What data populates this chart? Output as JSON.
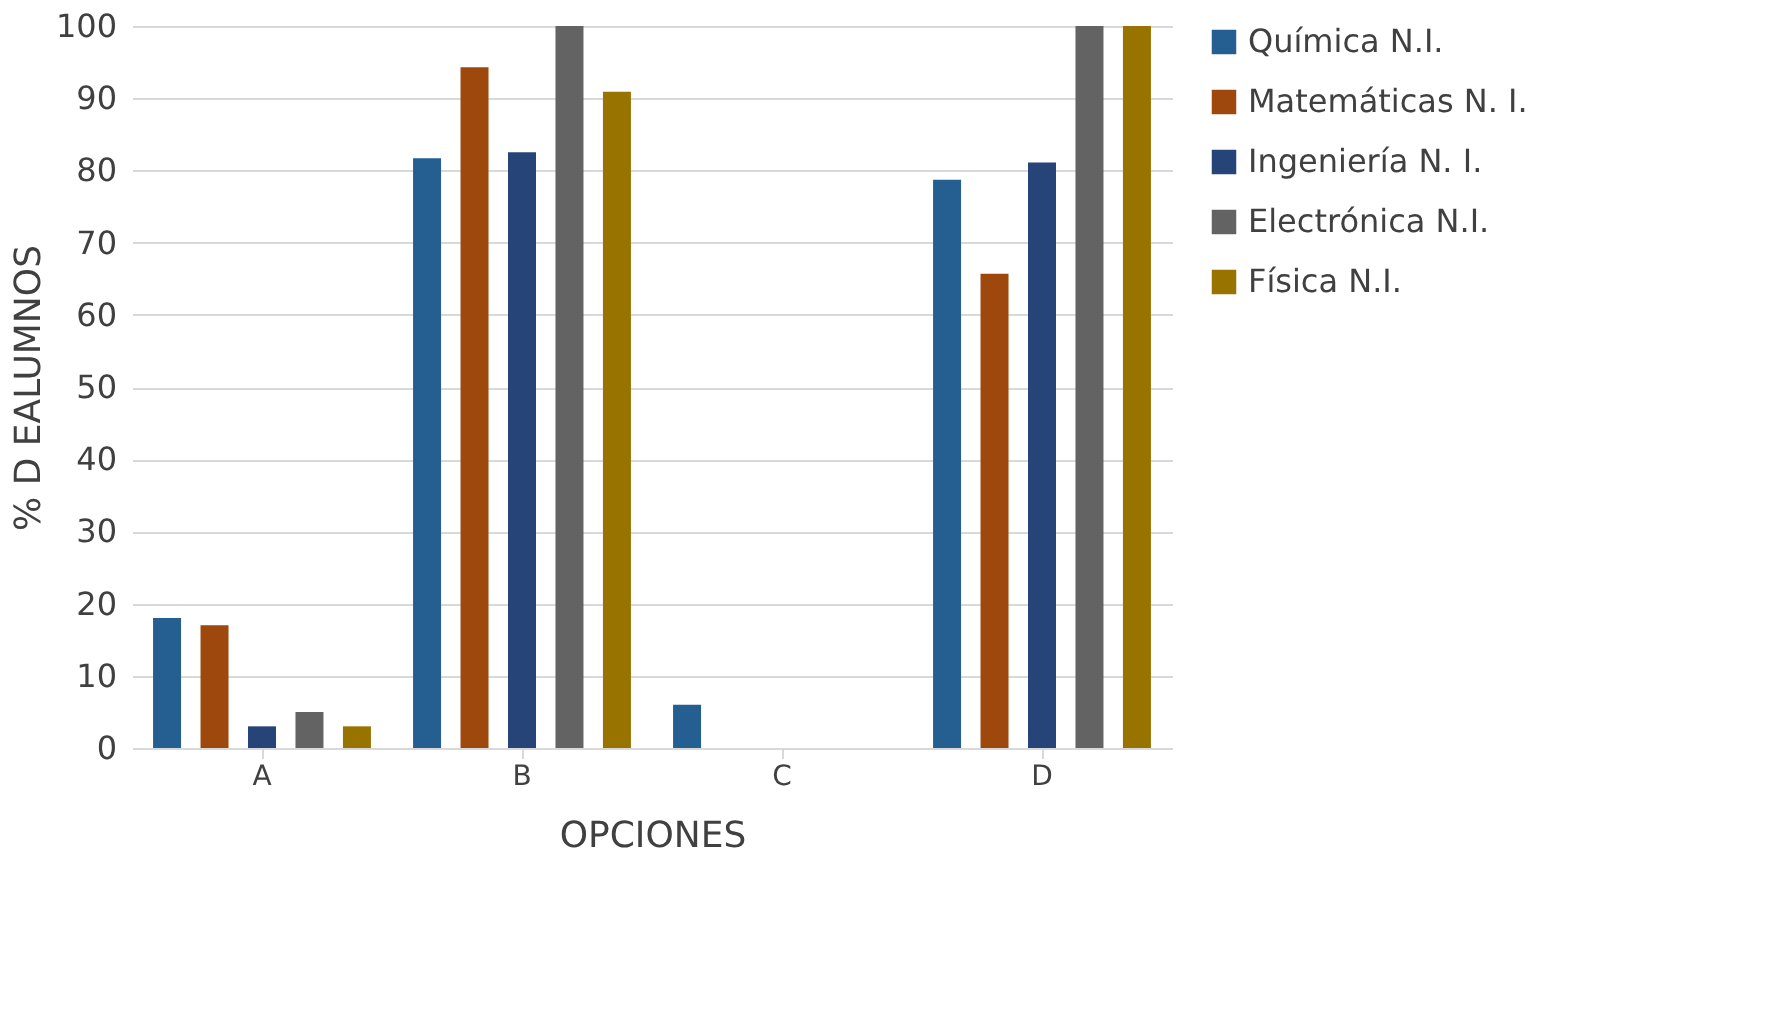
{
  "chart_data": {
    "type": "bar",
    "xlabel": "OPCIONES",
    "ylabel": "% D EALUMNOS",
    "categories": [
      "A",
      "B",
      "C",
      "D"
    ],
    "series": [
      {
        "name": "Química N.I.",
        "color": "#255e91",
        "values": [
          18,
          81.7,
          6,
          78.7
        ]
      },
      {
        "name": "Matemáticas N. I.",
        "color": "#9e480e",
        "values": [
          17,
          94.3,
          0,
          65.7
        ]
      },
      {
        "name": "Ingeniería N. I.",
        "color": "#264478",
        "values": [
          3,
          82.5,
          0,
          81.1
        ]
      },
      {
        "name": "Electrónica N.I.",
        "color": "#636363",
        "values": [
          5,
          100,
          0,
          100
        ]
      },
      {
        "name": "Física N.I.",
        "color": "#997300",
        "values": [
          3,
          90.9,
          0,
          100
        ]
      }
    ],
    "ylim": [
      0,
      100
    ],
    "yticks": [
      0,
      10,
      20,
      30,
      40,
      50,
      60,
      70,
      80,
      90,
      100
    ],
    "grid": "y",
    "legend": "right"
  }
}
